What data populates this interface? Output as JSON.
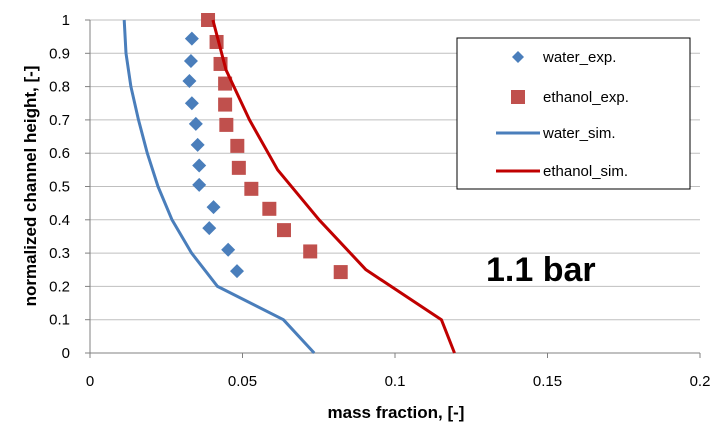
{
  "chart_data": {
    "type": "scatter",
    "xlabel": "mass fraction, [-]",
    "ylabel": "normalized channel height, [-]",
    "xlim": [
      0,
      0.2
    ],
    "ylim": [
      0,
      1
    ],
    "x_ticks": [
      "0",
      "0.05",
      "0.1",
      "0.15",
      "0.2"
    ],
    "y_ticks": [
      "0",
      "0.1",
      "0.2",
      "0.3",
      "0.4",
      "0.5",
      "0.6",
      "0.7",
      "0.8",
      "0.9",
      "1"
    ],
    "grid": "horizontal",
    "legend_position": "top-right",
    "annotation": "1.1 bar",
    "series": [
      {
        "name": "water_exp.",
        "kind": "scatter",
        "marker": "diamond",
        "color": "#4a7ebb",
        "points": [
          [
            0.0334,
            0.944
          ],
          [
            0.0331,
            0.877
          ],
          [
            0.0326,
            0.817
          ],
          [
            0.0334,
            0.75
          ],
          [
            0.0347,
            0.688
          ],
          [
            0.0353,
            0.625
          ],
          [
            0.0358,
            0.563
          ],
          [
            0.0358,
            0.505
          ],
          [
            0.0405,
            0.438
          ],
          [
            0.0391,
            0.375
          ],
          [
            0.0453,
            0.31
          ],
          [
            0.0482,
            0.246
          ]
        ]
      },
      {
        "name": "ethanol_exp.",
        "kind": "scatter",
        "marker": "square",
        "color": "#c0504d",
        "points": [
          [
            0.0387,
            1.0
          ],
          [
            0.0415,
            0.934
          ],
          [
            0.0428,
            0.868
          ],
          [
            0.0443,
            0.809
          ],
          [
            0.0443,
            0.746
          ],
          [
            0.0447,
            0.685
          ],
          [
            0.0483,
            0.622
          ],
          [
            0.0488,
            0.556
          ],
          [
            0.0529,
            0.493
          ],
          [
            0.0588,
            0.433
          ],
          [
            0.0636,
            0.369
          ],
          [
            0.0722,
            0.305
          ],
          [
            0.0822,
            0.243
          ]
        ]
      },
      {
        "name": "water_sim.",
        "kind": "line",
        "color": "#4a7ebb",
        "points": [
          [
            0.0112,
            1.0
          ],
          [
            0.0118,
            0.9
          ],
          [
            0.0134,
            0.8
          ],
          [
            0.0159,
            0.7
          ],
          [
            0.0188,
            0.6
          ],
          [
            0.0223,
            0.5
          ],
          [
            0.0269,
            0.4
          ],
          [
            0.0333,
            0.3
          ],
          [
            0.0418,
            0.2
          ],
          [
            0.0634,
            0.1
          ],
          [
            0.0735,
            0.0
          ]
        ]
      },
      {
        "name": "ethanol_sim.",
        "kind": "line",
        "color": "#c00000",
        "points": [
          [
            0.0403,
            1.0
          ],
          [
            0.0446,
            0.85
          ],
          [
            0.0523,
            0.7
          ],
          [
            0.0615,
            0.55
          ],
          [
            0.0751,
            0.4
          ],
          [
            0.0905,
            0.25
          ],
          [
            0.1152,
            0.1
          ],
          [
            0.1195,
            0.0
          ]
        ]
      }
    ]
  }
}
